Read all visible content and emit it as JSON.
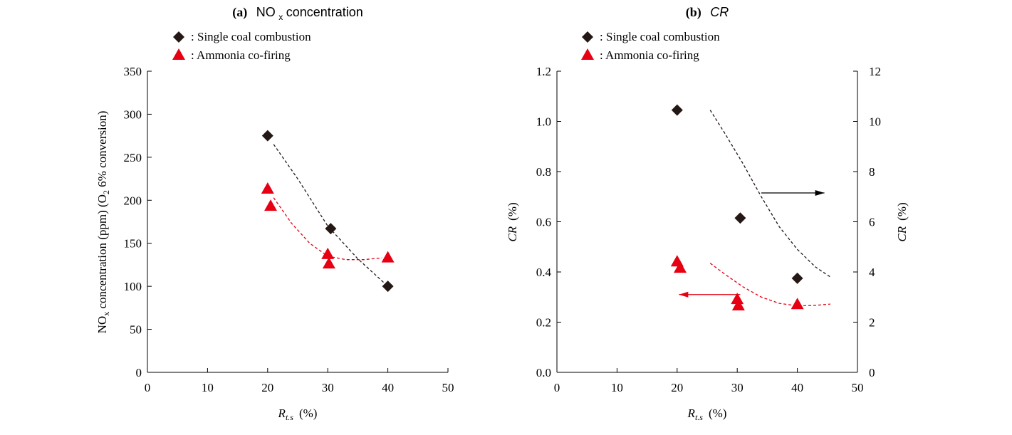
{
  "colors": {
    "coal": "#231815",
    "ammonia": "#e60012",
    "axis": "#000000"
  },
  "chart_data": [
    {
      "type": "scatter",
      "panel_tag": "(a)",
      "title": "NOₓ concentration",
      "title_parts": {
        "main": "NO",
        "sub": "x",
        "rest": " concentration"
      },
      "xlabel": "R",
      "xlabel_sub": "t.s",
      "xlabel_unit": "(%)",
      "ylabel": "NOₓ concentration (ppm) (O₂ 6% conversion)",
      "ylabel_parts": {
        "a": "NO",
        "a_sub": "x",
        "b": " concentration  (ppm) (O",
        "b_sub": "2",
        "c": " 6% conversion)"
      },
      "xlim": [
        0,
        50
      ],
      "ylim": [
        0,
        350
      ],
      "xticks": [
        "0",
        "10",
        "20",
        "30",
        "40",
        "50"
      ],
      "yticks": [
        "0",
        "50",
        "100",
        "150",
        "200",
        "250",
        "300",
        "350"
      ],
      "legend": [
        "Single coal combustion",
        "Ammonia co-firing"
      ],
      "legend_prefix": ": ",
      "series": [
        {
          "name": "Single coal combustion",
          "marker": "diamond",
          "color": "#231815",
          "points": [
            [
              20,
              275
            ],
            [
              30.5,
              167
            ],
            [
              40,
              100
            ]
          ]
        },
        {
          "name": "Ammonia co-firing",
          "marker": "triangle",
          "color": "#e60012",
          "points": [
            [
              20,
              213
            ],
            [
              20.5,
              193
            ],
            [
              30,
              137
            ],
            [
              30.2,
              126
            ],
            [
              40,
              133
            ]
          ]
        }
      ],
      "trend_lines": [
        {
          "color": "#231815",
          "points": [
            [
              21,
              265
            ],
            [
              25,
              225
            ],
            [
              30,
              170
            ],
            [
              35,
              132
            ],
            [
              40,
              100
            ]
          ]
        },
        {
          "color": "#e60012",
          "points": [
            [
              21,
              203
            ],
            [
              24,
              173
            ],
            [
              27,
              150
            ],
            [
              30,
              135
            ],
            [
              33,
              131
            ],
            [
              36,
              131
            ],
            [
              39,
              133
            ]
          ]
        }
      ]
    },
    {
      "type": "scatter",
      "panel_tag": "(b)",
      "title": "CR",
      "xlabel": "R",
      "xlabel_sub": "t.s",
      "xlabel_unit": "(%)",
      "ylabel_left": "CR  (%)",
      "ylabel_right": "CR  (%)",
      "ylabel_italic": "CR",
      "ylabel_unit": "(%)",
      "xlim": [
        0,
        50
      ],
      "ylim": [
        0,
        1.2
      ],
      "ylim_right": [
        0,
        12
      ],
      "xticks": [
        "0",
        "10",
        "20",
        "30",
        "40",
        "50"
      ],
      "yticks": [
        "0.0",
        "0.2",
        "0.4",
        "0.6",
        "0.8",
        "1.0",
        "1.2"
      ],
      "yticks_right": [
        "0",
        "2",
        "4",
        "6",
        "8",
        "10",
        "12"
      ],
      "legend": [
        "Single coal combustion",
        "Ammonia co-firing"
      ],
      "legend_prefix": ": ",
      "series": [
        {
          "name": "Single coal combustion",
          "marker": "diamond",
          "color": "#231815",
          "axis": "right",
          "points": [
            [
              20,
              10.45
            ],
            [
              30.5,
              6.15
            ],
            [
              40,
              3.75
            ]
          ]
        },
        {
          "name": "Ammonia co-firing",
          "marker": "triangle",
          "color": "#e60012",
          "axis": "left",
          "points": [
            [
              20,
              0.44
            ],
            [
              20.5,
              0.415
            ],
            [
              30,
              0.29
            ],
            [
              30.2,
              0.265
            ],
            [
              40,
              0.27
            ]
          ]
        }
      ],
      "trend_lines": [
        {
          "color": "#231815",
          "axis": "right",
          "points": [
            [
              25.5,
              10.45
            ],
            [
              28,
              9.5
            ],
            [
              31,
              8.3
            ],
            [
              34,
              7.0
            ],
            [
              37,
              5.8
            ],
            [
              40,
              4.9
            ],
            [
              43,
              4.2
            ],
            [
              45.5,
              3.8
            ]
          ]
        },
        {
          "color": "#e60012",
          "axis": "left",
          "points": [
            [
              25.5,
              0.435
            ],
            [
              28,
              0.39
            ],
            [
              31,
              0.34
            ],
            [
              34,
              0.3
            ],
            [
              37,
              0.275
            ],
            [
              40,
              0.265
            ],
            [
              43,
              0.267
            ],
            [
              45.5,
              0.272
            ]
          ]
        }
      ],
      "annotations": [
        {
          "type": "arrow",
          "direction": "right",
          "color": "#000000",
          "from": [
            34,
            7.15
          ],
          "to": [
            44.5,
            7.15
          ],
          "axis": "right"
        },
        {
          "type": "arrow",
          "direction": "left",
          "color": "#e60012",
          "from": [
            30.5,
            0.31
          ],
          "to": [
            20.3,
            0.31
          ],
          "axis": "left"
        }
      ]
    }
  ]
}
